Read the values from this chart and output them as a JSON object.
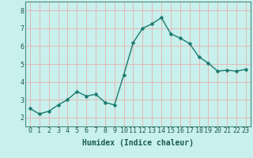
{
  "x": [
    0,
    1,
    2,
    3,
    4,
    5,
    6,
    7,
    8,
    9,
    10,
    11,
    12,
    13,
    14,
    15,
    16,
    17,
    18,
    19,
    20,
    21,
    22,
    23
  ],
  "y": [
    2.5,
    2.2,
    2.35,
    2.7,
    3.0,
    3.45,
    3.2,
    3.3,
    2.85,
    2.7,
    4.4,
    6.2,
    7.0,
    7.25,
    7.6,
    6.7,
    6.45,
    6.15,
    5.4,
    5.05,
    4.6,
    4.65,
    4.6,
    4.7
  ],
  "line_color": "#1a7a6e",
  "marker_color": "#1a7a6e",
  "bg_color": "#c8f0ec",
  "grid_color": "#e8b0b0",
  "xlabel": "Humidex (Indice chaleur)",
  "ylim": [
    1.5,
    8.5
  ],
  "yticks": [
    2,
    3,
    4,
    5,
    6,
    7,
    8
  ],
  "xticks": [
    0,
    1,
    2,
    3,
    4,
    5,
    6,
    7,
    8,
    9,
    10,
    11,
    12,
    13,
    14,
    15,
    16,
    17,
    18,
    19,
    20,
    21,
    22,
    23
  ],
  "xlabel_fontsize": 7,
  "tick_fontsize": 6,
  "line_width": 1.0,
  "marker_size": 2.5
}
